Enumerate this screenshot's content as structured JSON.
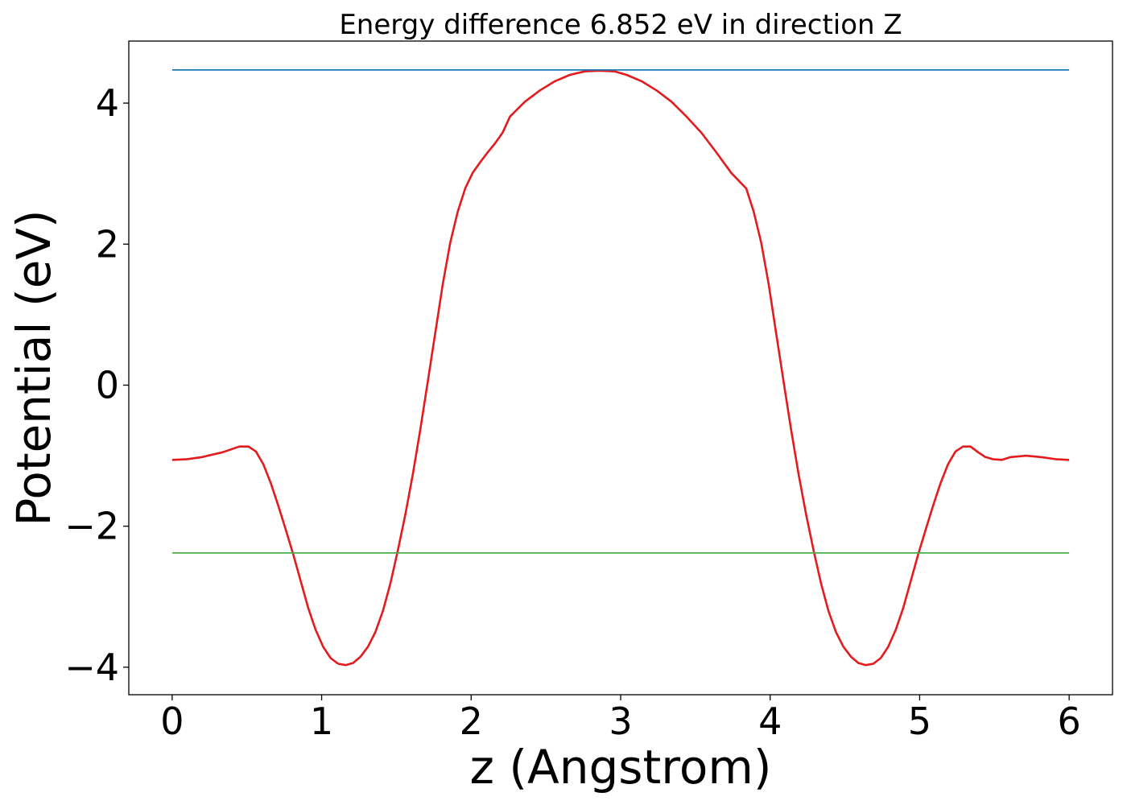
{
  "chart_data": {
    "type": "line",
    "title": "Energy difference 6.852 eV in direction Z",
    "xlabel": "z (Angstrom)",
    "ylabel": "Potential (eV)",
    "xlim": [
      -0.29,
      6.29
    ],
    "ylim": [
      -4.39,
      4.88
    ],
    "xticks": [
      0,
      1,
      2,
      3,
      4,
      5,
      6
    ],
    "xtick_labels": [
      "0",
      "1",
      "2",
      "3",
      "4",
      "5",
      "6"
    ],
    "yticks": [
      -4,
      -2,
      0,
      2,
      4
    ],
    "ytick_labels": [
      "−4",
      "−2",
      "0",
      "2",
      "4"
    ],
    "grid": false,
    "series": [
      {
        "color": "#e41a1c",
        "x": [
          0.0,
          0.1,
          0.2,
          0.34,
          0.45,
          0.51,
          0.56,
          0.61,
          0.66,
          0.71,
          0.76,
          0.81,
          0.86,
          0.91,
          0.96,
          1.01,
          1.06,
          1.11,
          1.16,
          1.21,
          1.26,
          1.31,
          1.36,
          1.41,
          1.46,
          1.51,
          1.56,
          1.61,
          1.66,
          1.71,
          1.76,
          1.81,
          1.86,
          1.91,
          1.96,
          2.01,
          2.06,
          2.11,
          2.16,
          2.21,
          2.26,
          2.36,
          2.46,
          2.56,
          2.66,
          2.76,
          2.86,
          2.96,
          3.04,
          3.14,
          3.24,
          3.34,
          3.44,
          3.54,
          3.64,
          3.74,
          3.84,
          3.89,
          3.94,
          3.99,
          4.04,
          4.09,
          4.14,
          4.19,
          4.24,
          4.29,
          4.34,
          4.39,
          4.44,
          4.49,
          4.54,
          4.59,
          4.64,
          4.69,
          4.74,
          4.79,
          4.84,
          4.89,
          4.94,
          4.99,
          5.04,
          5.09,
          5.14,
          5.19,
          5.24,
          5.29,
          5.34,
          5.39,
          5.44,
          5.49,
          5.55,
          5.61,
          5.71,
          5.81,
          5.91,
          6.0
        ],
        "y": [
          -1.06,
          -1.05,
          -1.02,
          -0.95,
          -0.87,
          -0.87,
          -0.94,
          -1.12,
          -1.39,
          -1.71,
          -2.05,
          -2.4,
          -2.78,
          -3.16,
          -3.47,
          -3.71,
          -3.87,
          -3.95,
          -3.97,
          -3.94,
          -3.85,
          -3.71,
          -3.5,
          -3.2,
          -2.81,
          -2.34,
          -1.83,
          -1.26,
          -0.63,
          0.05,
          0.74,
          1.43,
          2.02,
          2.46,
          2.79,
          3.01,
          3.16,
          3.3,
          3.43,
          3.58,
          3.81,
          4.02,
          4.18,
          4.31,
          4.4,
          4.45,
          4.46,
          4.45,
          4.4,
          4.31,
          4.18,
          4.02,
          3.81,
          3.58,
          3.3,
          3.01,
          2.79,
          2.46,
          2.02,
          1.43,
          0.74,
          0.05,
          -0.63,
          -1.26,
          -1.83,
          -2.34,
          -2.81,
          -3.2,
          -3.5,
          -3.71,
          -3.85,
          -3.94,
          -3.97,
          -3.95,
          -3.87,
          -3.71,
          -3.47,
          -3.16,
          -2.78,
          -2.4,
          -2.05,
          -1.71,
          -1.39,
          -1.12,
          -0.94,
          -0.87,
          -0.87,
          -0.95,
          -1.02,
          -1.05,
          -1.06,
          -1.02,
          -1.0,
          -1.02,
          -1.05,
          -1.06
        ]
      },
      {
        "color": "#1f77b4",
        "x": [
          0,
          6
        ],
        "y": [
          4.47,
          4.47
        ]
      },
      {
        "color": "#4daf4a",
        "x": [
          0,
          6
        ],
        "y": [
          -2.38,
          -2.38
        ]
      }
    ]
  }
}
